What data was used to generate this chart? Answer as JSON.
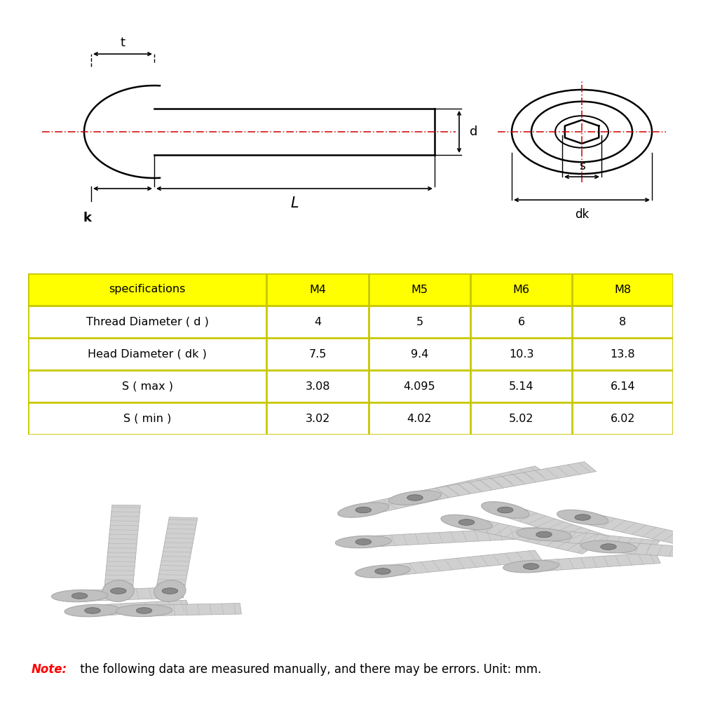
{
  "bg_color": "#ffffff",
  "table_header_bg": "#ffff00",
  "table_border_color": "#c8c800",
  "table_text_color": "#000000",
  "note_bold_color": "#ff0000",
  "note_text_color": "#000000",
  "diagram_line_color": "#000000",
  "diagram_dash_color": "#cc0000",
  "table_headers": [
    "specifications",
    "M4",
    "M5",
    "M6",
    "M8"
  ],
  "table_rows": [
    [
      "Thread Diameter ( d )",
      "4",
      "5",
      "6",
      "8"
    ],
    [
      "Head Diameter ( dk )",
      "7.5",
      "9.4",
      "10.3",
      "13.8"
    ],
    [
      "S ( max )",
      "3.08",
      "4.095",
      "5.14",
      "6.14"
    ],
    [
      "S ( min )",
      "3.02",
      "4.02",
      "5.02",
      "6.02"
    ]
  ],
  "note_bold": "Note:",
  "note_text": " the following data are measured manually, and there may be errors. Unit: mm.",
  "labels": [
    "t",
    "d",
    "k",
    "L",
    "s",
    "dk"
  ]
}
